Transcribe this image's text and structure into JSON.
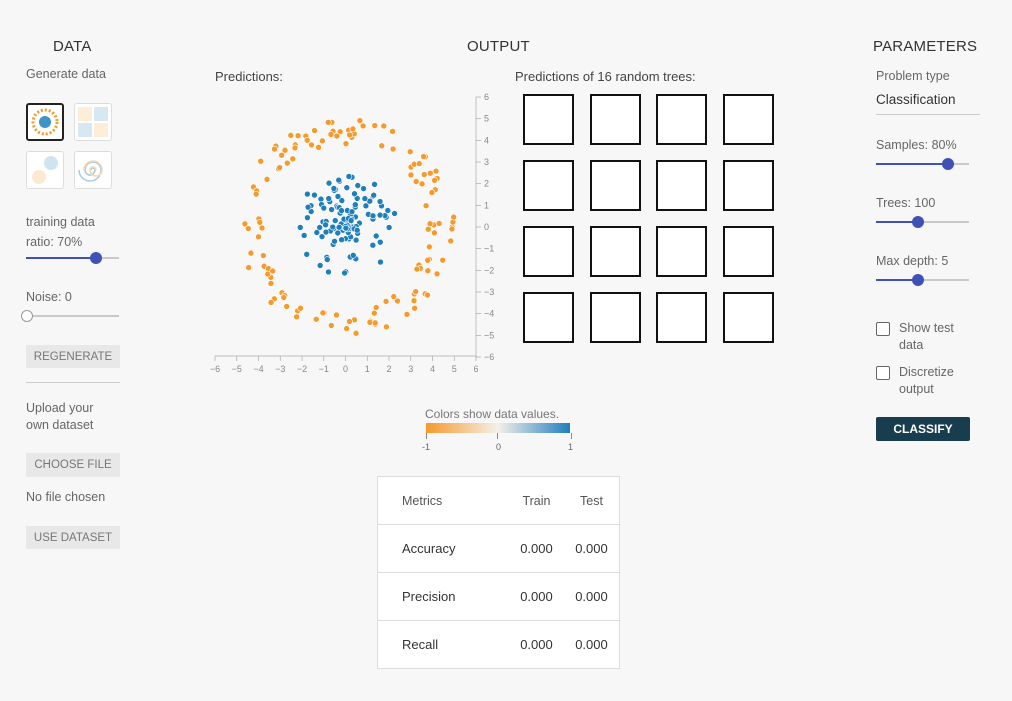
{
  "sections": {
    "data": "DATA",
    "output": "OUTPUT",
    "parameters": "PARAMETERS"
  },
  "data_panel": {
    "generate_label": "Generate data",
    "datasets": [
      "circle",
      "gaussian-xor",
      "two-gaussians",
      "spiral"
    ],
    "selected_dataset": "circle",
    "ratio_label": "training data ratio:  70%",
    "ratio_value": 0.7,
    "noise_label": "Noise:  0",
    "noise_value": 0,
    "regenerate": "REGENERATE",
    "upload_label": "Upload your own dataset",
    "choose_file": "CHOOSE FILE",
    "no_file": "No file chosen",
    "use_dataset": "USE DATASET"
  },
  "output": {
    "predictions_label": "Predictions:",
    "trees_label": "Predictions of 16 random trees:",
    "tree_count": 16,
    "colors_label": "Colors show data values.",
    "scale_ticks": [
      "-1",
      "0",
      "1"
    ],
    "colors": {
      "negative": "#f59a2c",
      "positive": "#1f7fbd",
      "accent": "#3f51b5",
      "dark_button": "#183d4e"
    }
  },
  "chart_data": {
    "type": "scatter",
    "title": "Predictions:",
    "xlim": [
      -6,
      6
    ],
    "ylim": [
      -6,
      6
    ],
    "xticks": [
      "-6",
      "-5",
      "-4",
      "-3",
      "-2",
      "-1",
      "0",
      "1",
      "2",
      "3",
      "4",
      "5",
      "6"
    ],
    "yticks": [
      "6",
      "5",
      "4",
      "3",
      "2",
      "1",
      "0",
      "-1",
      "-2",
      "-3",
      "-4",
      "-5",
      "-6"
    ],
    "grid": false,
    "series": [
      {
        "class": "-1",
        "color": "#f59a2c",
        "radius_range": [
          3.8,
          5
        ]
      },
      {
        "class": "1",
        "color": "#1f7fbd",
        "radius_range": [
          0,
          2.4
        ]
      }
    ]
  },
  "metrics": {
    "headers": [
      "Metrics",
      "Train",
      "Test"
    ],
    "rows": [
      {
        "name": "Accuracy",
        "train": "0.000",
        "test": "0.000"
      },
      {
        "name": "Precision",
        "train": "0.000",
        "test": "0.000"
      },
      {
        "name": "Recall",
        "train": "0.000",
        "test": "0.000"
      }
    ]
  },
  "parameters": {
    "problem_type_label": "Problem type",
    "problem_type_value": "Classification",
    "samples_label": "Samples:  80%",
    "samples_value": 0.8,
    "trees_label": "Trees:  100",
    "trees_value": 0.45,
    "max_depth_label": "Max depth:  5",
    "max_depth_value": 0.45,
    "show_test_label": "Show test data",
    "discretize_label": "Discretize output",
    "classify": "CLASSIFY"
  }
}
